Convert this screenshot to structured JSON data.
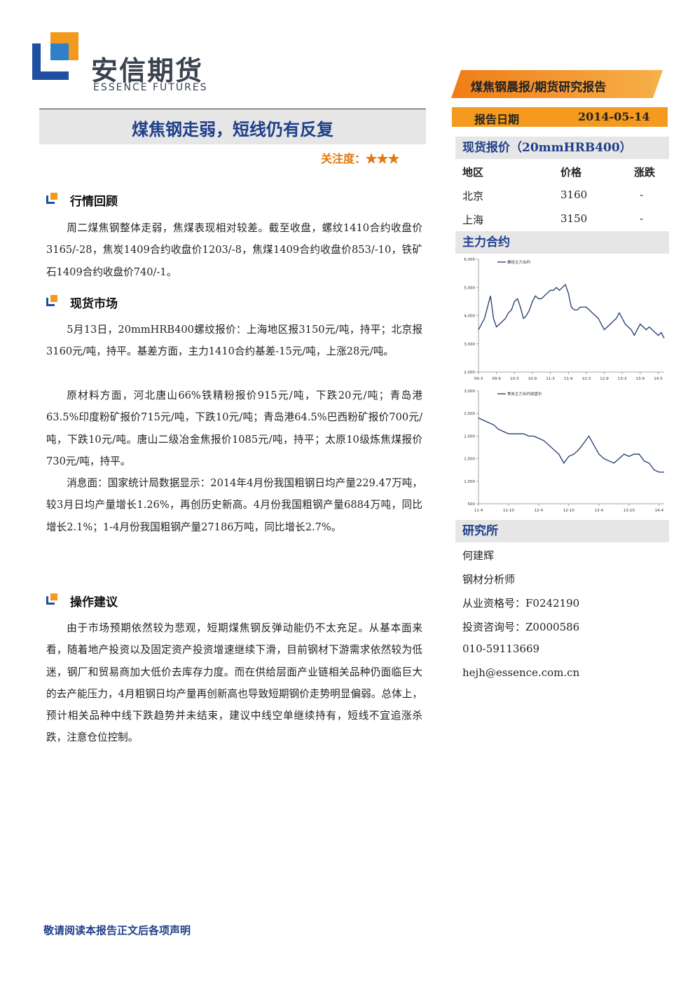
{
  "header": {
    "logo_cn": "安信期货",
    "logo_en": "ESSENCE FUTURES",
    "report_type": "煤焦钢晨报/期货研究报告",
    "date_label": "报告日期",
    "date": "2014-05-14"
  },
  "title": "煤焦钢走弱，短线仍有反复",
  "attention": "关注度：★★★",
  "sections": [
    {
      "heading": "行情回顾",
      "paragraphs": [
        "周二煤焦钢整体走弱，焦煤表现相对较差。截至收盘，螺纹1410合约收盘价3165/-28，焦炭1409合约收盘价1203/-8，焦煤1409合约收盘价853/-10，铁矿石1409合约收盘价740/-1。"
      ]
    },
    {
      "heading": "现货市场",
      "paragraphs": [
        "5月13日，20mmHRB400螺纹报价：上海地区报3150元/吨，持平；北京报3160元/吨，持平。基差方面，主力1410合约基差-15元/吨，上涨28元/吨。",
        "原材料方面，河北唐山66%铁精粉报价915元/吨，下跌20元/吨；青岛港63.5%印度粉矿报价715元/吨，下跌10元/吨；青岛港64.5%巴西粉矿报价700元/吨，下跌10元/吨。唐山二级冶金焦报价1085元/吨，持平；太原10级炼焦煤报价730元/吨，持平。",
        "消息面：国家统计局数据显示：2014年4月份我国粗钢日均产量229.47万吨，较3月日均产量增长1.26%，再创历史新高。4月份我国粗钢产量6884万吨，同比增长2.1%；1-4月份我国粗钢产量27186万吨，同比增长2.7%。"
      ]
    },
    {
      "heading": "操作建议",
      "paragraphs": [
        "由于市场预期依然较为悲观，短期煤焦钢反弹动能仍不太充足。从基本面来看，随着地产投资以及固定资产投资增速继续下滑，目前钢材下游需求依然较为低迷，钢厂和贸易商加大低价去库存力度。而在供给层面产业链相关品种仍面临巨大的去产能压力，4月粗钢日均产量再创新高也导致短期钢价走势明显偏弱。总体上，预计相关品种中线下跌趋势并未结束，建议中线空单继续持有，短线不宜追涨杀跌，注意仓位控制。"
      ]
    }
  ],
  "spot": {
    "title": "现货报价（20mmHRB400）",
    "header": [
      "地区",
      "价格",
      "涨跌"
    ],
    "rows": [
      [
        "北京",
        "3160",
        "-"
      ],
      [
        "上海",
        "3150",
        "-"
      ]
    ]
  },
  "main_contract": "主力合约",
  "research": {
    "title": "研究所",
    "lines": [
      "何建辉",
      "钢材分析师",
      "从业资格号：F0242190",
      "投资咨询号：Z0000586",
      "010-59113669",
      "hejh@essence.com.cn"
    ]
  },
  "footer": "敬请阅读本报告正文后各项声明",
  "chart_data": [
    {
      "type": "line",
      "categories": [
        "09-3",
        null,
        null,
        null,
        null,
        null,
        "09-9",
        null,
        null,
        null,
        null,
        null,
        "10-3",
        null,
        null,
        null,
        null,
        null,
        "10-9",
        null,
        null,
        null,
        null,
        null,
        "11-3",
        null,
        null,
        null,
        null,
        null,
        "11-9",
        null,
        null,
        null,
        null,
        null,
        "12-3",
        null,
        null,
        null,
        null,
        null,
        "12-9",
        null,
        null,
        null,
        null,
        null,
        "13-3",
        null,
        null,
        null,
        null,
        null,
        "13-9",
        null,
        null,
        null,
        null,
        null,
        "14-3",
        null,
        null
      ],
      "series": [
        {
          "name": "螺纹主力合约",
          "color": "#1f3a6e",
          "values": [
            3500,
            3700,
            3900,
            4300,
            4700,
            3900,
            3600,
            3700,
            3800,
            3900,
            4100,
            4200,
            4500,
            4600,
            4300,
            3900,
            4000,
            4200,
            4500,
            4700,
            4600,
            4600,
            4700,
            4800,
            4900,
            4900,
            5000,
            4900,
            5000,
            5100,
            4800,
            4300,
            4200,
            4200,
            4300,
            4300,
            4300,
            4200,
            4100,
            4000,
            3900,
            3700,
            3500,
            3600,
            3700,
            3800,
            3900,
            4100,
            3900,
            3700,
            3600,
            3500,
            3300,
            3500,
            3700,
            3600,
            3500,
            3600,
            3500,
            3400,
            3300,
            3400,
            3200
          ]
        }
      ],
      "ylim": [
        2000,
        6000
      ],
      "yticks": [
        {
          "value": 2000,
          "label": "2,000"
        },
        {
          "value": 3000,
          "label": "3,000"
        },
        {
          "value": 4000,
          "label": "4,000"
        },
        {
          "value": 5000,
          "label": "5,000"
        },
        {
          "value": 6000,
          "label": "6,000"
        }
      ]
    },
    {
      "type": "line",
      "categories": [
        "11-4",
        null,
        null,
        null,
        null,
        null,
        "11-10",
        null,
        null,
        null,
        null,
        null,
        "12-4",
        null,
        null,
        null,
        null,
        null,
        "12-10",
        null,
        null,
        null,
        null,
        null,
        "13-4",
        null,
        null,
        null,
        null,
        null,
        "13-10",
        null,
        null,
        null,
        null,
        null,
        "14-4",
        null
      ],
      "series": [
        {
          "name": "焦炭主力合约收盘价",
          "color": "#1f3a6e",
          "values": [
            2400,
            2350,
            2300,
            2250,
            2150,
            2100,
            2050,
            2050,
            2050,
            2050,
            2000,
            2000,
            1950,
            1900,
            1800,
            1700,
            1600,
            1400,
            1550,
            1600,
            1700,
            1850,
            2000,
            1800,
            1600,
            1500,
            1450,
            1400,
            1500,
            1600,
            1550,
            1600,
            1600,
            1450,
            1400,
            1250,
            1200,
            1200
          ]
        }
      ],
      "ylim": [
        500,
        3000
      ],
      "yticks": [
        500,
        {
          "value": 1000,
          "label": "1,000"
        },
        {
          "value": 1500,
          "label": "1,500"
        },
        {
          "value": 2000,
          "label": "2,000"
        },
        {
          "value": 2500,
          "label": "2,500"
        },
        {
          "value": 3000,
          "label": "3,000"
        }
      ]
    }
  ]
}
